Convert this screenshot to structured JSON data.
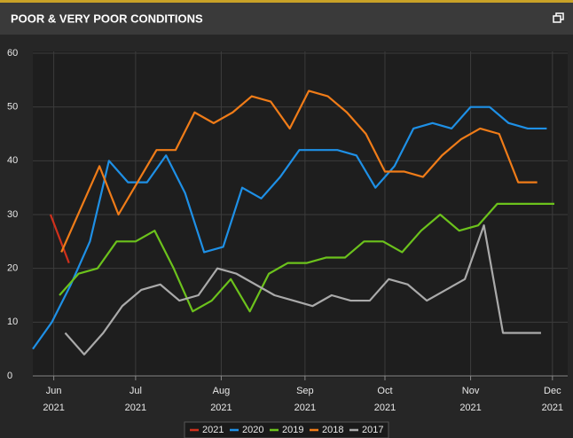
{
  "chart_data": {
    "type": "line",
    "title": "POOR & VERY POOR CONDITIONS",
    "xlim": [
      0,
      28.1
    ],
    "xticks": [
      {
        "value": 1.1,
        "label": "Jun",
        "year": "2021"
      },
      {
        "value": 5.4,
        "label": "Jul",
        "year": "2021"
      },
      {
        "value": 9.9,
        "label": "Aug",
        "year": "2021"
      },
      {
        "value": 14.3,
        "label": "Sep",
        "year": "2021"
      },
      {
        "value": 18.5,
        "label": "Oct",
        "year": "2021"
      },
      {
        "value": 23,
        "label": "Nov",
        "year": "2021"
      },
      {
        "value": 27.3,
        "label": "Dec",
        "year": "2021"
      }
    ],
    "ylim": [
      0,
      60
    ],
    "yticks": [
      0,
      10,
      20,
      30,
      40,
      50,
      60
    ],
    "grid": true,
    "legend": "bottom",
    "series": [
      {
        "name": "2021",
        "color": "#d0301c",
        "x": [
          0.93,
          1.9
        ],
        "values": [
          30,
          21
        ]
      },
      {
        "name": "2020",
        "color": "#1e90e6",
        "x": [
          0,
          1,
          2,
          3,
          4,
          5,
          6,
          7,
          8,
          9,
          10,
          11,
          12,
          13,
          14,
          15,
          16,
          17,
          18,
          19,
          20,
          21,
          22,
          23,
          24,
          25,
          26,
          27
        ],
        "values": [
          5,
          10,
          17,
          25,
          40,
          36,
          36,
          41,
          34,
          23,
          24,
          35,
          33,
          37,
          42,
          42,
          42,
          41,
          35,
          39,
          46,
          47,
          46,
          50,
          50,
          47,
          46,
          46
        ]
      },
      {
        "name": "2019",
        "color": "#6cc21c",
        "x": [
          1.4,
          2.4,
          3.4,
          4.4,
          5.4,
          6.4,
          7.4,
          8.4,
          9.4,
          10.4,
          11.4,
          12.4,
          13.4,
          14.4,
          15.4,
          16.4,
          17.4,
          18.4,
          19.4,
          20.4,
          21.4,
          22.4,
          23.4,
          24.4,
          25.4,
          26.4,
          27.4
        ],
        "values": [
          15,
          19,
          20,
          25,
          25,
          27,
          20,
          12,
          14,
          18,
          12,
          19,
          21,
          21,
          22,
          22,
          25,
          25,
          23,
          27,
          30,
          27,
          28,
          32,
          32,
          32,
          32
        ]
      },
      {
        "name": "2018",
        "color": "#f07c18",
        "x": [
          1.5,
          2.5,
          3.5,
          4.5,
          5.5,
          6.5,
          7.5,
          8.5,
          9.5,
          10.5,
          11.5,
          12.5,
          13.5,
          14.5,
          15.5,
          16.5,
          17.5,
          18.5,
          19.5,
          20.5,
          21.5,
          22.5,
          23.5,
          24.5,
          25.5,
          26.5
        ],
        "values": [
          23,
          31,
          39,
          30,
          36,
          42,
          42,
          49,
          47,
          49,
          52,
          51,
          46,
          53,
          52,
          49,
          45,
          38,
          38,
          37,
          41,
          44,
          46,
          45,
          36,
          36
        ]
      },
      {
        "name": "2017",
        "color": "#aaaaaa",
        "x": [
          1.7,
          2.7,
          3.7,
          4.7,
          5.7,
          6.7,
          7.7,
          8.7,
          9.7,
          10.7,
          11.7,
          12.7,
          13.7,
          14.7,
          15.7,
          16.7,
          17.7,
          18.7,
          19.7,
          20.7,
          21.7,
          22.7,
          23.7,
          24.7,
          25.7,
          26.7
        ],
        "values": [
          8,
          4,
          8,
          13,
          16,
          17,
          14,
          15,
          20,
          19,
          17,
          15,
          14,
          13,
          15,
          14,
          14,
          18,
          17,
          14,
          16,
          18,
          28,
          8,
          8,
          8
        ]
      }
    ]
  }
}
